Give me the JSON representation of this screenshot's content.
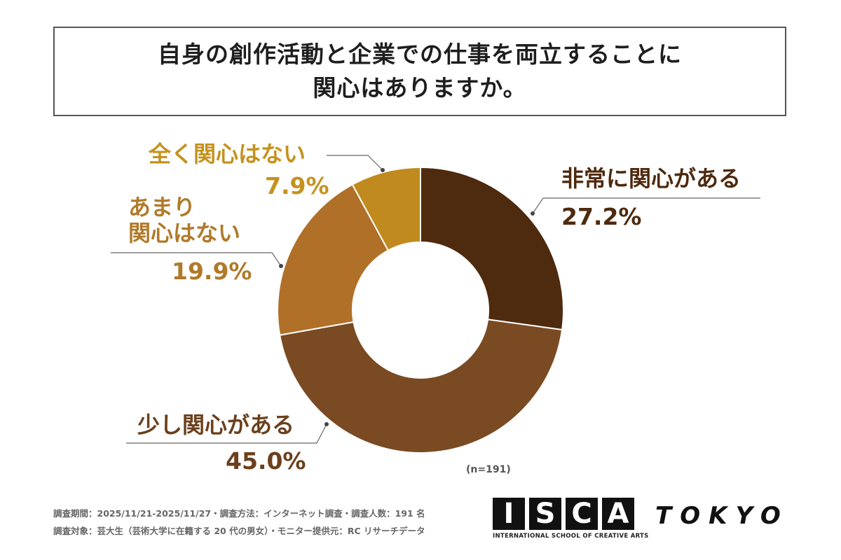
{
  "title": {
    "line1": "自身の創作活動と企業での仕事を両立することに",
    "line2": "関心はありますか。"
  },
  "chart_data": {
    "type": "pie",
    "variant": "donut",
    "categories": [
      "非常に関心がある",
      "少し関心がある",
      "あまり関心はない",
      "全く関心はない"
    ],
    "values": [
      27.2,
      45.0,
      19.9,
      7.9
    ],
    "value_labels": [
      "27.2%",
      "45.0%",
      "19.9%",
      "7.9%"
    ],
    "colors": [
      "#4e2a0e",
      "#7a4a22",
      "#b07028",
      "#c08a1e"
    ],
    "label_colors": [
      "#4e2a0e",
      "#6b401c",
      "#b07a2a",
      "#c4921e"
    ],
    "start": "12 o'clock, clockwise"
  },
  "sample_size": "(n=191)",
  "footer": {
    "line1": "調査期間：2025/11/21-2025/11/27・調査方法：インターネット調査・調査人数：191 名",
    "line2": "調査対象：芸大生（芸術大学に在籍する 20 代の男女）・モニター提供元：RC リサーチデータ"
  },
  "logo": {
    "letters": [
      "I",
      "S",
      "C",
      "A"
    ],
    "city": "TOKYO",
    "subtitle": "INTERNATIONAL SCHOOL OF CREATIVE ARTS"
  }
}
